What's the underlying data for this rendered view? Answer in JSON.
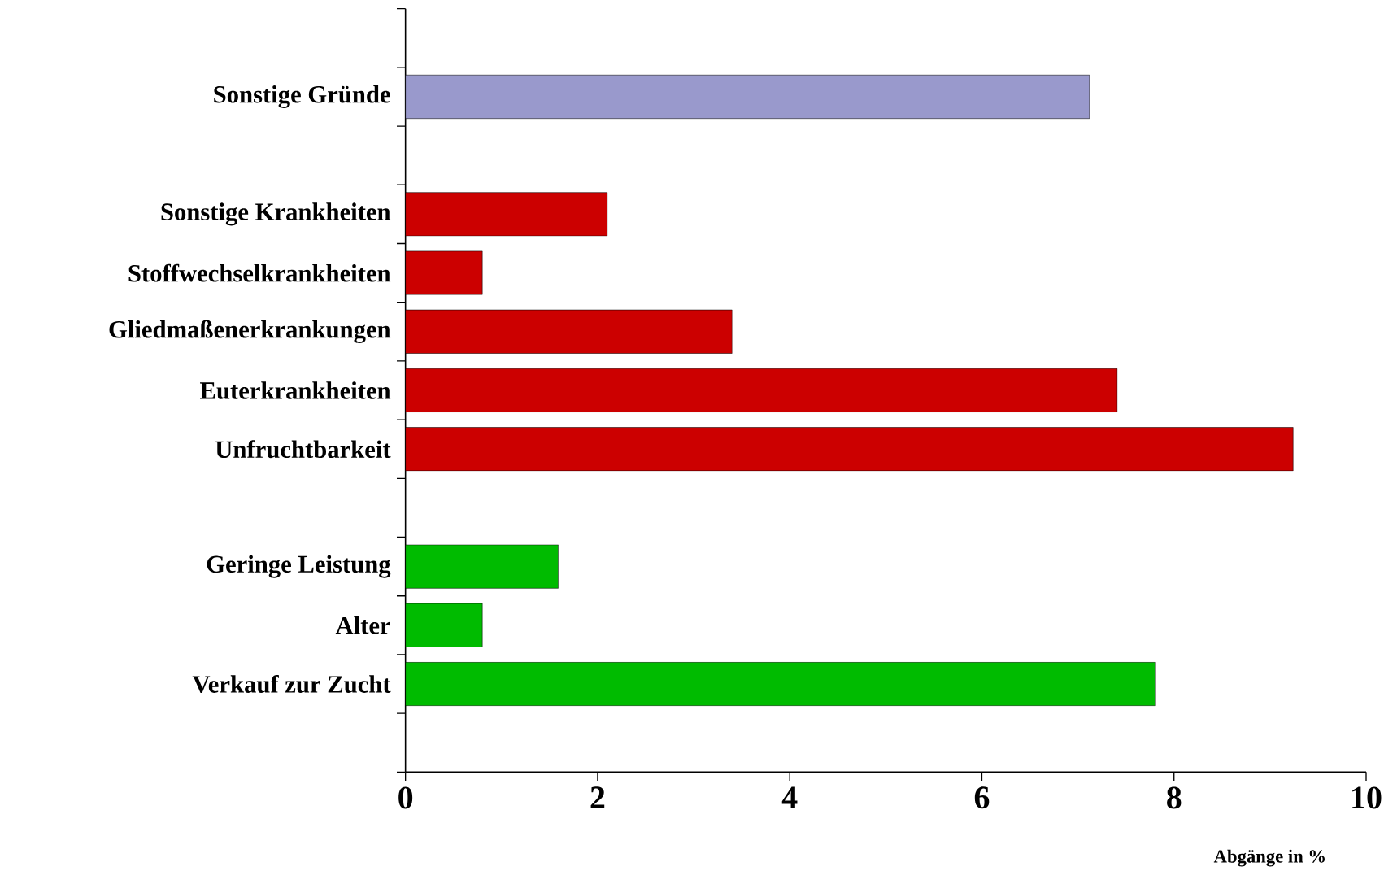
{
  "chart_data": {
    "type": "bar",
    "orientation": "horizontal",
    "xlabel": "Abgänge in %",
    "categories": [
      null,
      "Sonstige Gründe",
      null,
      "Sonstige Krankheiten",
      "Stoffwechselkrankheiten",
      "Gliedmaßenerkrankungen",
      "Euterkrankheiten",
      "Unfruchtbarkeit",
      null,
      "Geringe Leistung",
      "Alter",
      "Verkauf zur Zucht",
      null
    ],
    "values": [
      null,
      7.12,
      null,
      2.1,
      0.8,
      3.4,
      7.41,
      9.24,
      null,
      1.59,
      0.8,
      7.81,
      null
    ],
    "colors": [
      "#9999cc",
      "#9999cc",
      "#cc0000",
      "#cc0000",
      "#cc0000",
      "#cc0000",
      "#cc0000",
      "#cc0000",
      "#00bb00",
      "#00bb00",
      "#00bb00",
      "#00bb00",
      "#00bb00"
    ],
    "xlim": [
      0,
      10
    ],
    "xticks": [
      0,
      2,
      4,
      6,
      8,
      10
    ],
    "grid": false
  }
}
